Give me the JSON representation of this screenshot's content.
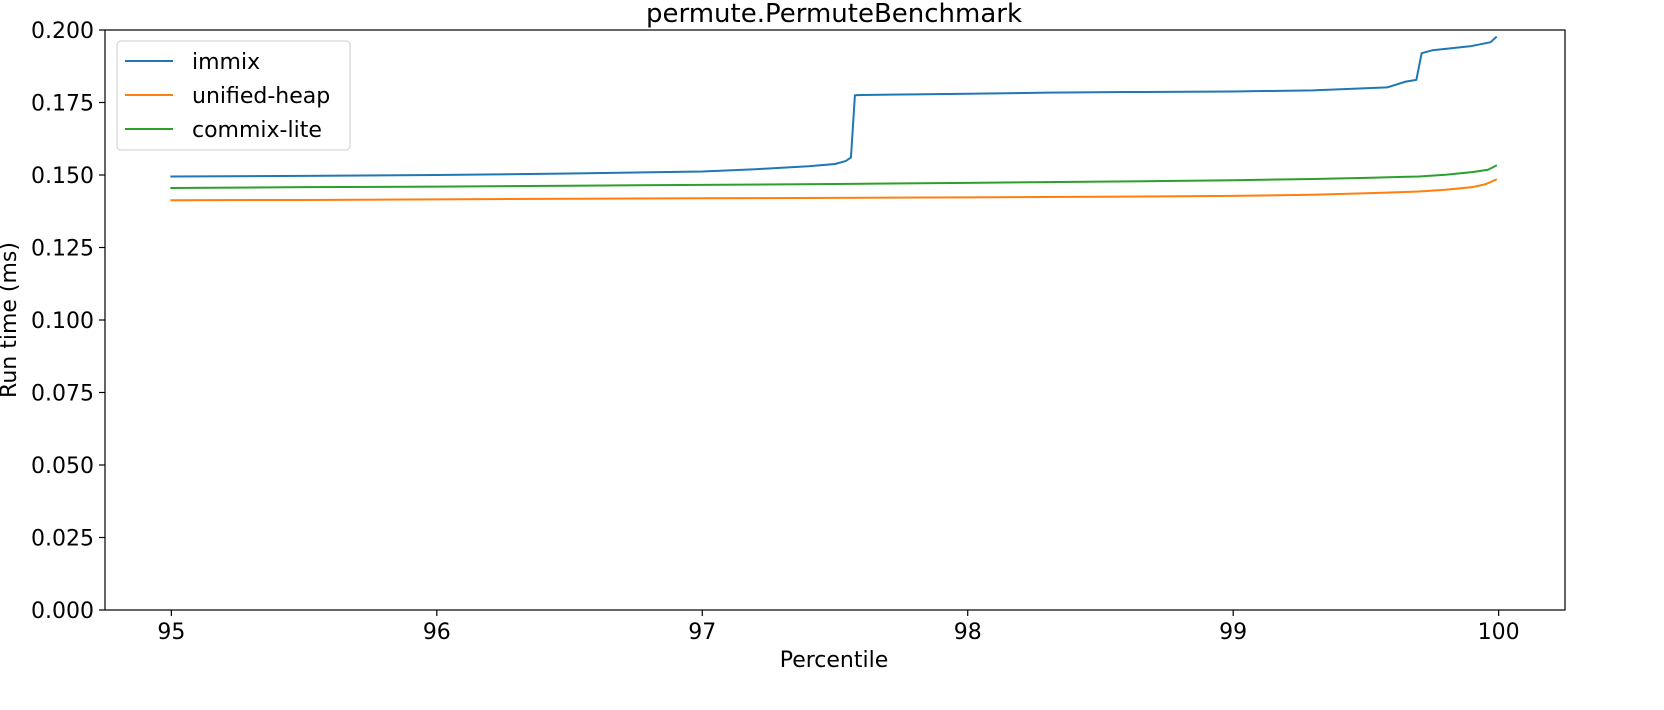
{
  "chart_data": {
    "type": "line",
    "title": "permute.PermuteBenchmark",
    "xlabel": "Percentile",
    "ylabel": "Run time (ms)",
    "xlim": [
      94.75,
      100.25
    ],
    "ylim": [
      0,
      0.2
    ],
    "x_ticks": [
      95,
      96,
      97,
      98,
      99,
      100
    ],
    "x_tick_labels": [
      "95",
      "96",
      "97",
      "98",
      "99",
      "100"
    ],
    "y_ticks": [
      0,
      0.025,
      0.05,
      0.075,
      0.1,
      0.125,
      0.15,
      0.175,
      0.2
    ],
    "y_tick_labels": [
      "0.000",
      "0.025",
      "0.050",
      "0.075",
      "0.100",
      "0.125",
      "0.150",
      "0.175",
      "0.200"
    ],
    "grid": false,
    "legend_position": "top-left",
    "series": [
      {
        "name": "immix",
        "color": "#1f77b4",
        "x": [
          95.0,
          95.5,
          96.0,
          96.5,
          97.0,
          97.2,
          97.4,
          97.5,
          97.54,
          97.56,
          97.575,
          97.6,
          97.8,
          98.0,
          98.3,
          98.6,
          99.0,
          99.3,
          99.58,
          99.65,
          99.69,
          99.71,
          99.75,
          99.8,
          99.9,
          99.97,
          99.99
        ],
        "y": [
          0.1495,
          0.1497,
          0.15,
          0.1505,
          0.1512,
          0.152,
          0.153,
          0.1538,
          0.1548,
          0.156,
          0.1775,
          0.1776,
          0.1778,
          0.178,
          0.1784,
          0.1786,
          0.1788,
          0.1792,
          0.1802,
          0.1822,
          0.1828,
          0.192,
          0.193,
          0.1935,
          0.1945,
          0.1958,
          0.1975
        ]
      },
      {
        "name": "unified-heap",
        "color": "#ff7f0e",
        "x": [
          95.0,
          95.5,
          96.0,
          96.5,
          97.0,
          97.5,
          98.0,
          98.5,
          99.0,
          99.3,
          99.5,
          99.7,
          99.8,
          99.9,
          99.95,
          99.99
        ],
        "y": [
          0.1413,
          0.1414,
          0.1416,
          0.1418,
          0.142,
          0.1421,
          0.1423,
          0.1425,
          0.1428,
          0.1432,
          0.1437,
          0.1443,
          0.1449,
          0.1458,
          0.1468,
          0.1484
        ]
      },
      {
        "name": "commix-lite",
        "color": "#2ca02c",
        "x": [
          95.0,
          95.5,
          96.0,
          96.5,
          97.0,
          97.5,
          98.0,
          98.5,
          99.0,
          99.3,
          99.5,
          99.7,
          99.8,
          99.9,
          99.96,
          99.99
        ],
        "y": [
          0.1455,
          0.1458,
          0.146,
          0.1463,
          0.1466,
          0.1469,
          0.1473,
          0.1477,
          0.1482,
          0.1486,
          0.149,
          0.1495,
          0.1501,
          0.151,
          0.1518,
          0.1532
        ]
      }
    ]
  }
}
